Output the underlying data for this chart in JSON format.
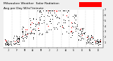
{
  "title1": "Milwaukee Weather  Solar Radiation",
  "title2": "Avg per Day W/m²/minute",
  "background_color": "#f0f0f0",
  "plot_bg": "#ffffff",
  "ylim": [
    0,
    7
  ],
  "yticks": [
    1,
    2,
    3,
    4,
    5,
    6,
    7
  ],
  "grid_color": "#aaaaaa",
  "dot_color_current": "#ff0000",
  "dot_color_hist": "#000000",
  "months": [
    "J",
    "F",
    "M",
    "A",
    "M",
    "J",
    "J",
    "A",
    "S",
    "O",
    "N",
    "D"
  ],
  "highlight_color": "#ff0000",
  "title_fontsize": 3.2,
  "tick_fontsize": 2.5,
  "monthly_base": [
    1.0,
    1.5,
    2.5,
    3.5,
    5.0,
    6.0,
    6.5,
    5.5,
    4.0,
    2.5,
    1.5,
    1.0
  ],
  "n_hist_years": 9,
  "seed": 42
}
